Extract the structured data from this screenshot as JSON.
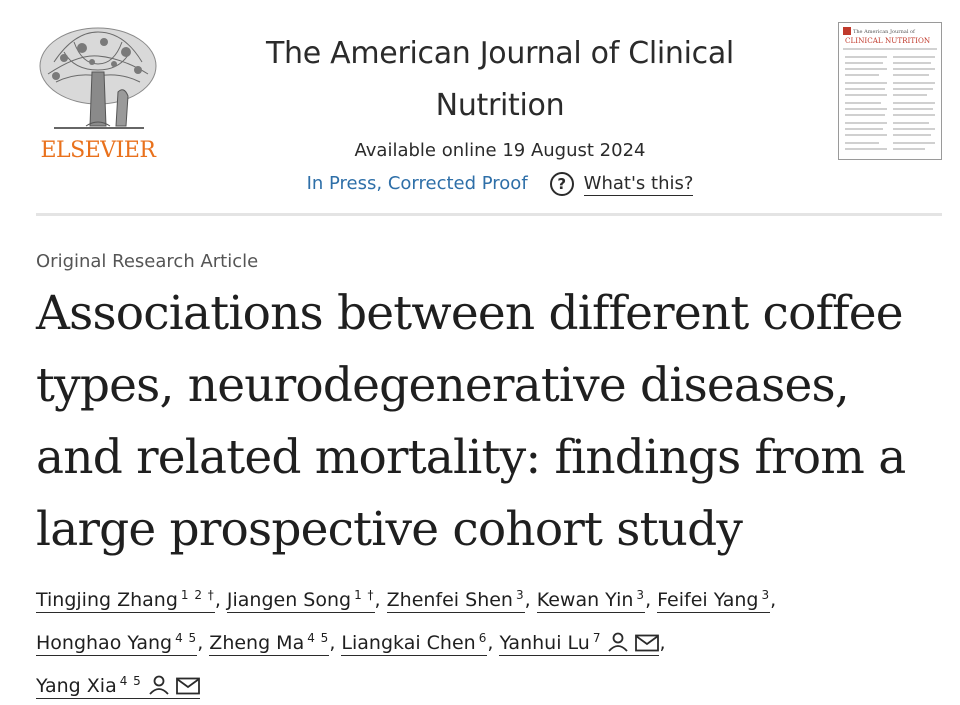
{
  "publisher": {
    "name": "ELSEVIER",
    "logo_icon": "elsevier-tree-icon",
    "brand_color": "#e9711c"
  },
  "journal": {
    "title_line1": "The American Journal of Clinical",
    "title_line2": "Nutrition",
    "available_online": "Available online 19 August 2024",
    "status": "In Press, Corrected Proof",
    "whats_this": "What's this?",
    "link_color": "#2e6fa8"
  },
  "cover": {
    "header_small": "The American Journal of",
    "header_big": "CLINICAL NUTRITION"
  },
  "article": {
    "type": "Original Research Article",
    "title_lines": [
      "Associations between different coffee",
      "types, neurodegenerative diseases,",
      "and related mortality: findings from a",
      "large prospective cohort study"
    ]
  },
  "authors": [
    {
      "name": "Tingjing Zhang",
      "sup": "1 2 †"
    },
    {
      "name": "Jiangen Song",
      "sup": "1 †"
    },
    {
      "name": "Zhenfei Shen",
      "sup": "3"
    },
    {
      "name": "Kewan Yin",
      "sup": "3"
    },
    {
      "name": "Feifei Yang",
      "sup": "3"
    },
    {
      "name": "Honghao Yang",
      "sup": "4 5"
    },
    {
      "name": "Zheng Ma",
      "sup": "4 5"
    },
    {
      "name": "Liangkai Chen",
      "sup": "6"
    },
    {
      "name": "Yanhui Lu",
      "sup": "7",
      "icons": [
        "person-icon",
        "envelope-icon"
      ]
    },
    {
      "name": "Yang Xia",
      "sup": "4 5",
      "icons": [
        "person-icon",
        "envelope-icon"
      ]
    }
  ],
  "separators": {
    "comma": ","
  }
}
